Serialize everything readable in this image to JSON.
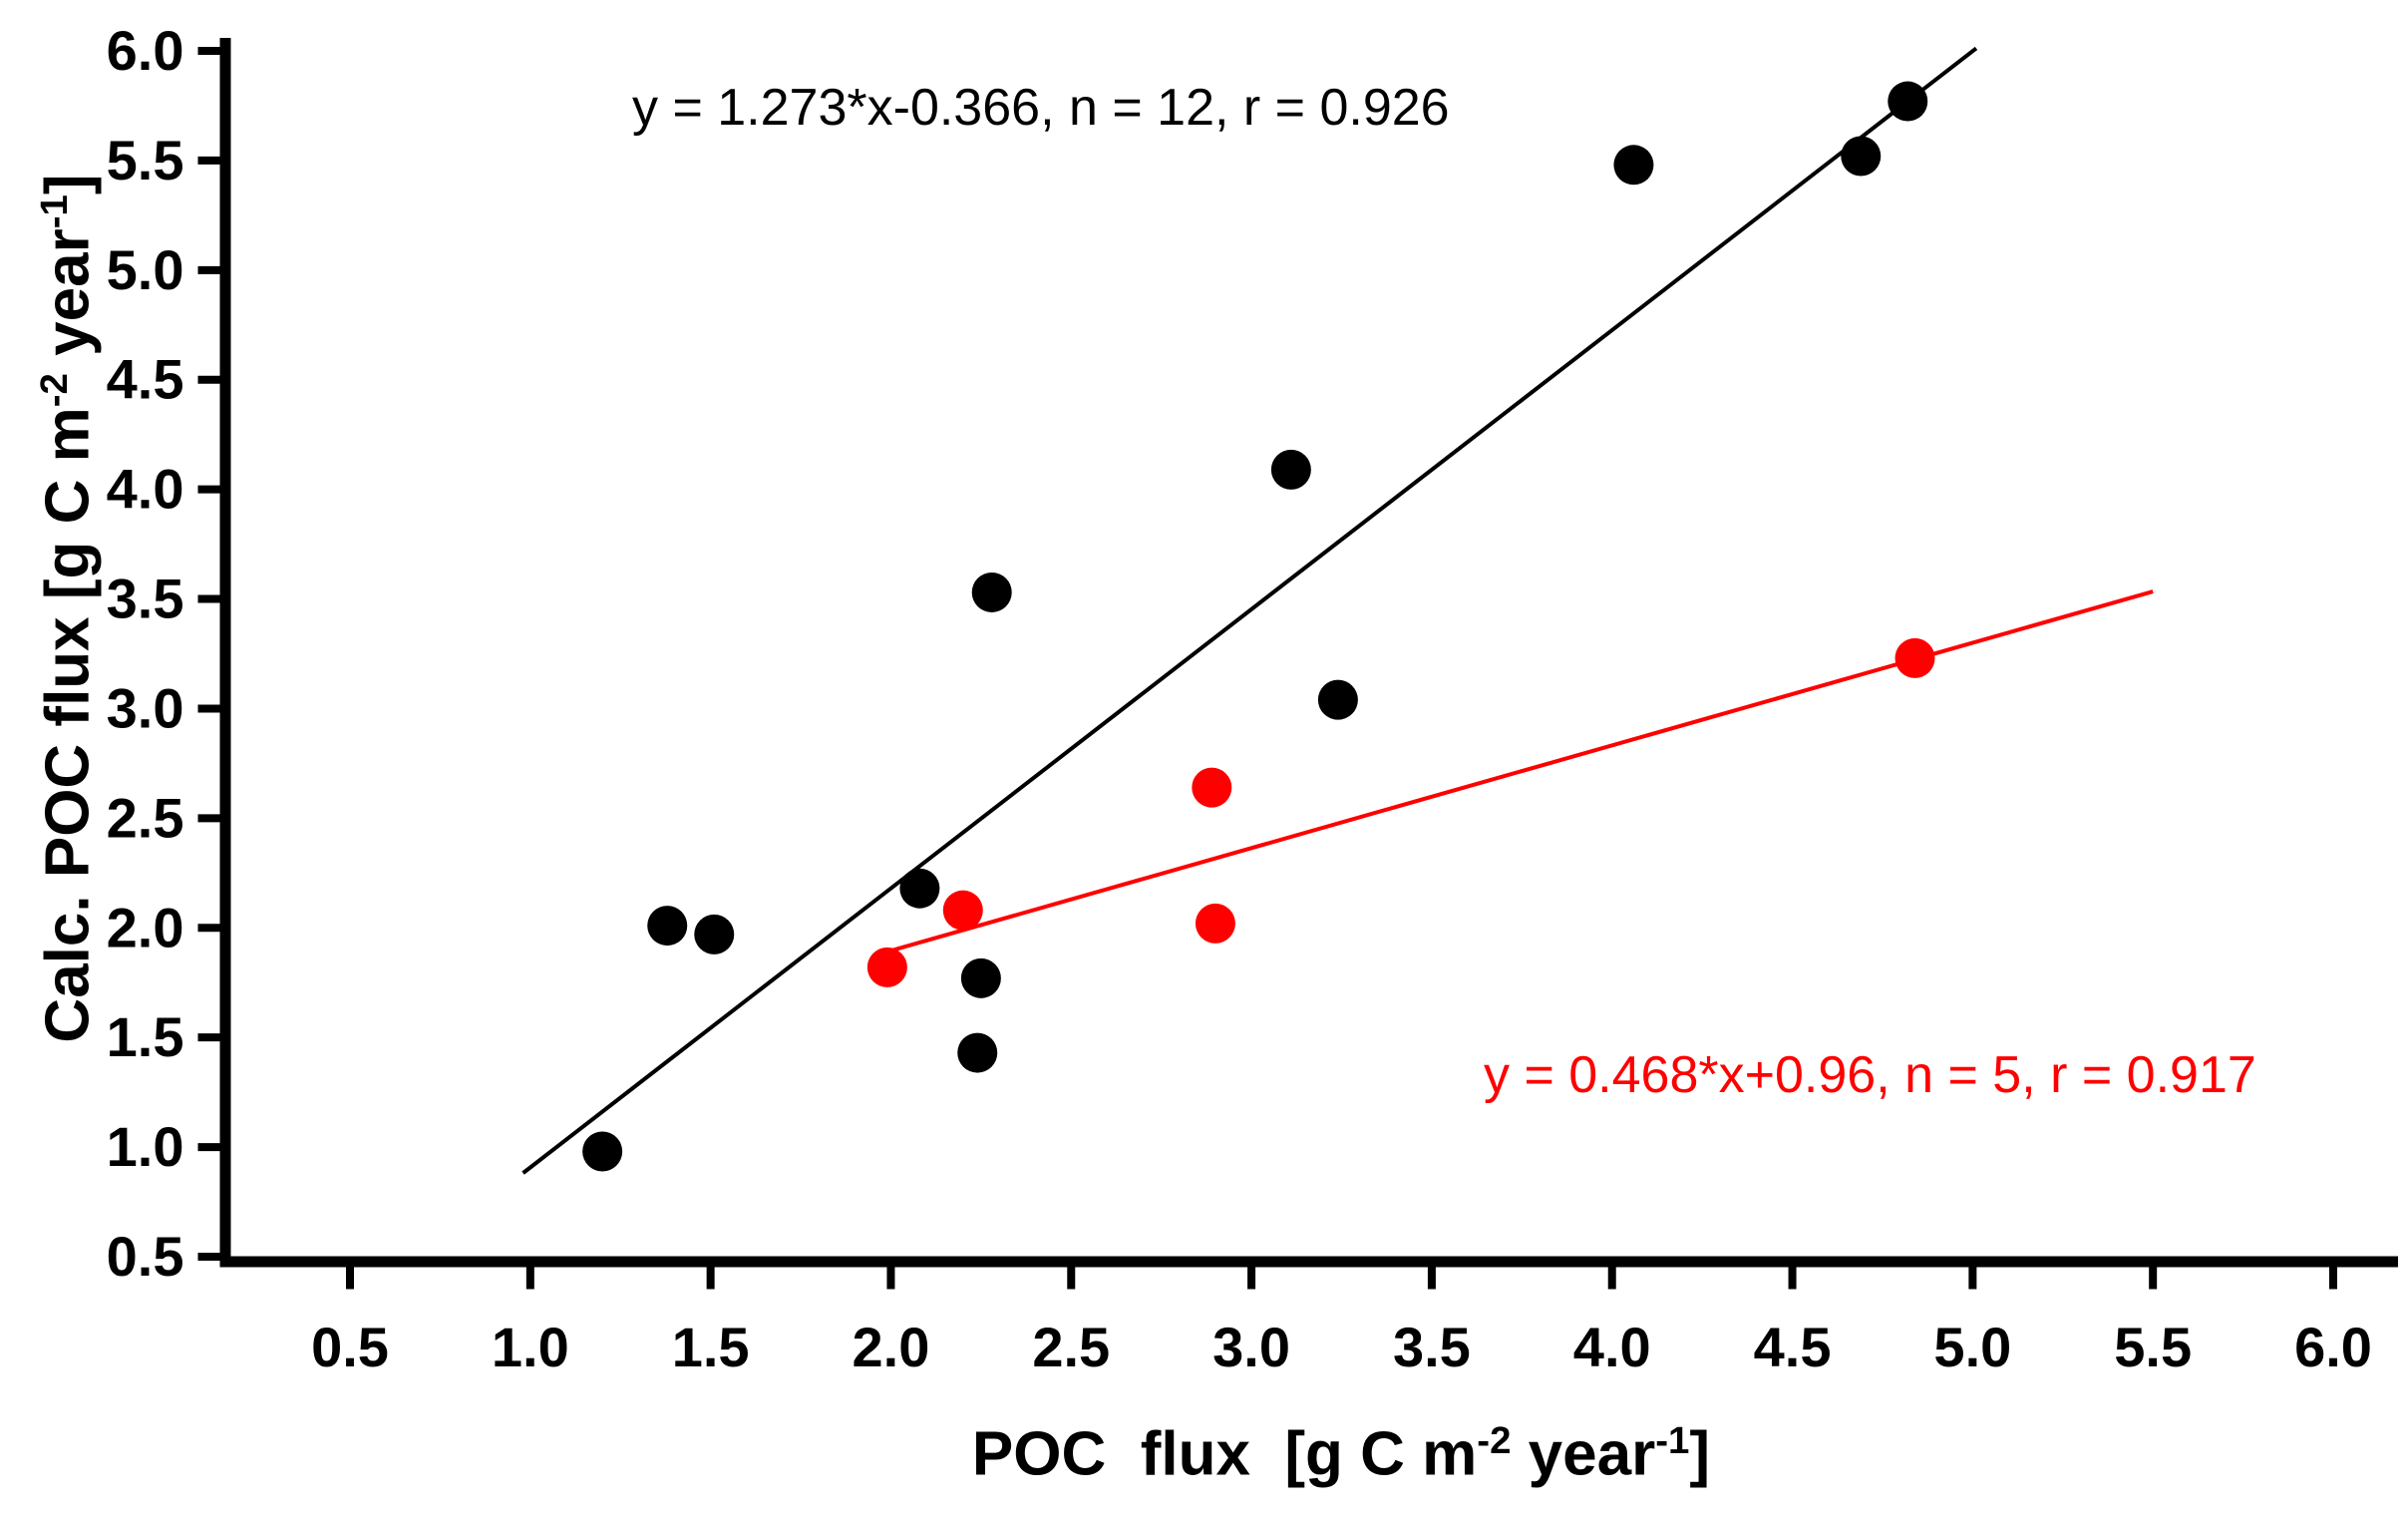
{
  "figure": {
    "background": "#ffffff"
  },
  "chart_data": {
    "type": "scatter",
    "title": "",
    "xlabel": "POC flux [g C m⁻² year⁻¹]",
    "ylabel": "Calc. POC flux [g C m⁻² year⁻¹]",
    "xlabel_parts": [
      "POC  flux  [g C m",
      "-2",
      " year",
      "-1",
      "]"
    ],
    "ylabel_parts": [
      "Calc. POC flux [g C m",
      "-2",
      " year",
      "-1",
      "]"
    ],
    "xlim": [
      0.5,
      6.0
    ],
    "ylim": [
      0.5,
      6.0
    ],
    "xticks": [
      0.5,
      1.0,
      1.5,
      2.0,
      2.5,
      3.0,
      3.5,
      4.0,
      4.5,
      5.0,
      5.5,
      6.0
    ],
    "yticks": [
      0.5,
      1.0,
      1.5,
      2.0,
      2.5,
      3.0,
      3.5,
      4.0,
      4.5,
      5.0,
      5.5,
      6.0
    ],
    "xtick_labels": [
      "0.5",
      "1.0",
      "1.5",
      "2.0",
      "2.5",
      "3.0",
      "3.5",
      "4.0",
      "4.5",
      "5.0",
      "5.5",
      "6.0"
    ],
    "ytick_labels": [
      "0.5",
      "1.0",
      "1.5",
      "2.0",
      "2.5",
      "3.0",
      "3.5",
      "4.0",
      "4.5",
      "5.0",
      "5.5",
      "6.0"
    ],
    "grid": false,
    "legend": "none",
    "series": [
      {
        "name": "black-series",
        "color": "#000000",
        "points": [
          [
            1.2,
            0.98
          ],
          [
            1.38,
            2.01
          ],
          [
            1.51,
            1.97
          ],
          [
            2.08,
            2.18
          ],
          [
            2.28,
            3.53
          ],
          [
            2.25,
            1.77
          ],
          [
            2.24,
            1.43
          ],
          [
            3.11,
            4.09
          ],
          [
            3.24,
            3.04
          ],
          [
            4.06,
            5.48
          ],
          [
            4.69,
            5.52
          ],
          [
            4.82,
            5.77
          ]
        ],
        "fit": {
          "slope": 1.273,
          "intercept": -0.366,
          "n": 12,
          "r": 0.926,
          "x_range": [
            0.98,
            5.01
          ],
          "label": "y = 1.273*x-0.366, n = 12, r = 0.926"
        }
      },
      {
        "name": "red-series",
        "color": "#ff0000",
        "points": [
          [
            1.99,
            1.82
          ],
          [
            2.2,
            2.08
          ],
          [
            2.89,
            2.64
          ],
          [
            2.9,
            2.02
          ],
          [
            4.84,
            3.23
          ]
        ],
        "fit": {
          "slope": 0.468,
          "intercept": 0.96,
          "n": 5,
          "r": 0.917,
          "x_range": [
            1.97,
            5.5
          ],
          "label": "y = 0.468*x+0.96, n = 5, r = 0.917"
        }
      }
    ]
  }
}
